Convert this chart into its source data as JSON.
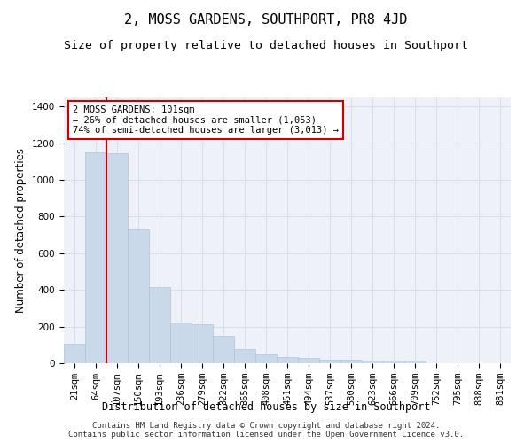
{
  "title": "2, MOSS GARDENS, SOUTHPORT, PR8 4JD",
  "subtitle": "Size of property relative to detached houses in Southport",
  "xlabel": "Distribution of detached houses by size in Southport",
  "ylabel": "Number of detached properties",
  "bar_color": "#c9d9ea",
  "bar_edge_color": "#b0c4d8",
  "grid_color": "#d8e0ec",
  "background_color": "#eef2f8",
  "categories": [
    "21sqm",
    "64sqm",
    "107sqm",
    "150sqm",
    "193sqm",
    "236sqm",
    "279sqm",
    "322sqm",
    "365sqm",
    "408sqm",
    "451sqm",
    "494sqm",
    "537sqm",
    "580sqm",
    "623sqm",
    "666sqm",
    "709sqm",
    "752sqm",
    "795sqm",
    "838sqm",
    "881sqm"
  ],
  "values": [
    105,
    1150,
    1145,
    730,
    415,
    220,
    215,
    150,
    75,
    50,
    35,
    30,
    20,
    18,
    15,
    15,
    13,
    0,
    0,
    0,
    0
  ],
  "ylim": [
    0,
    1450
  ],
  "yticks": [
    0,
    200,
    400,
    600,
    800,
    1000,
    1200,
    1400
  ],
  "red_line_x": 1.5,
  "marker_label": "2 MOSS GARDENS: 101sqm",
  "annotation_line1": "← 26% of detached houses are smaller (1,053)",
  "annotation_line2": "74% of semi-detached houses are larger (3,013) →",
  "annotation_box_color": "#ffffff",
  "annotation_box_edge_color": "#cc0000",
  "red_line_color": "#cc0000",
  "footer_line1": "Contains HM Land Registry data © Crown copyright and database right 2024.",
  "footer_line2": "Contains public sector information licensed under the Open Government Licence v3.0.",
  "title_fontsize": 11,
  "subtitle_fontsize": 9.5,
  "axis_label_fontsize": 8.5,
  "tick_fontsize": 7.5,
  "annotation_fontsize": 7.5,
  "footer_fontsize": 6.5
}
